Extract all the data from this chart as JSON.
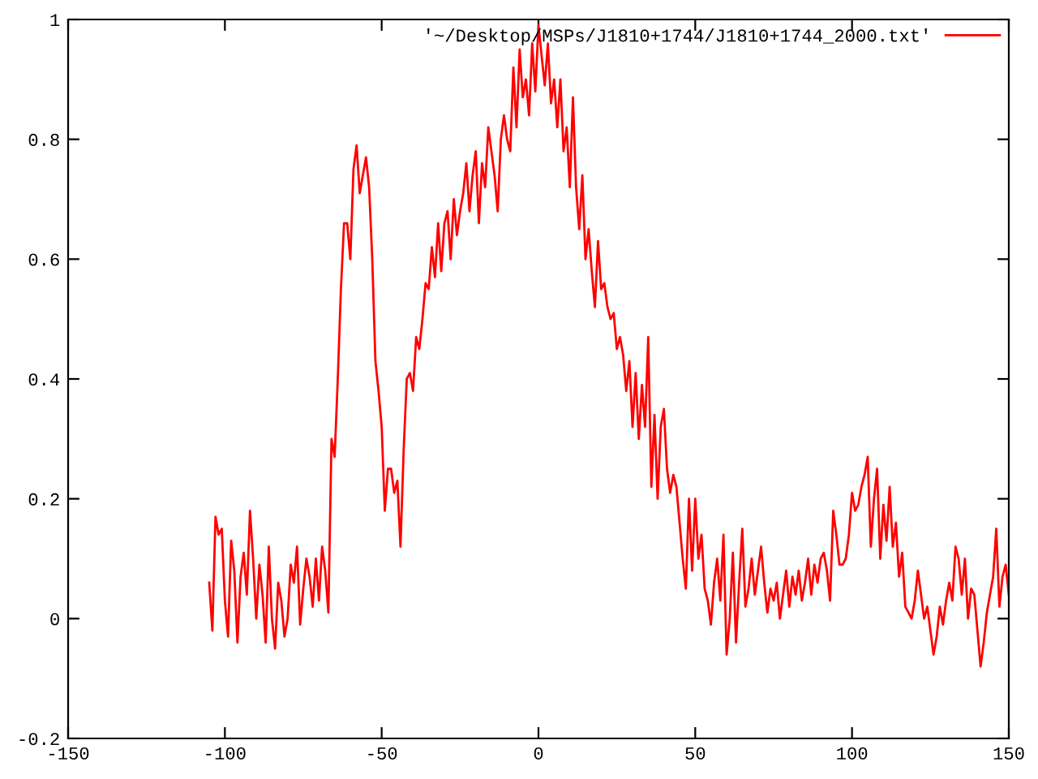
{
  "chart_data": {
    "type": "line",
    "series": [
      {
        "name": "'~/Desktop/MSPs/J1810+1744/J1810+1744_2000.txt'",
        "color": "#ff0000",
        "x": [
          -105,
          -104,
          -103,
          -102,
          -101,
          -100,
          -99,
          -98,
          -97,
          -96,
          -95,
          -94,
          -93,
          -92,
          -91,
          -90,
          -89,
          -88,
          -87,
          -86,
          -85,
          -84,
          -83,
          -82,
          -81,
          -80,
          -79,
          -78,
          -77,
          -76,
          -75,
          -74,
          -73,
          -72,
          -71,
          -70,
          -69,
          -68,
          -67,
          -66,
          -65,
          -64,
          -63,
          -62,
          -61,
          -60,
          -59,
          -58,
          -57,
          -56,
          -55,
          -54,
          -53,
          -52,
          -51,
          -50,
          -49,
          -48,
          -47,
          -46,
          -45,
          -44,
          -43,
          -42,
          -41,
          -40,
          -39,
          -38,
          -37,
          -36,
          -35,
          -34,
          -33,
          -32,
          -31,
          -30,
          -29,
          -28,
          -27,
          -26,
          -25,
          -24,
          -23,
          -22,
          -21,
          -20,
          -19,
          -18,
          -17,
          -16,
          -15,
          -14,
          -13,
          -12,
          -11,
          -10,
          -9,
          -8,
          -7,
          -6,
          -5,
          -4,
          -3,
          -2,
          -1,
          0,
          1,
          2,
          3,
          4,
          5,
          6,
          7,
          8,
          9,
          10,
          11,
          12,
          13,
          14,
          15,
          16,
          17,
          18,
          19,
          20,
          21,
          22,
          23,
          24,
          25,
          26,
          27,
          28,
          29,
          30,
          31,
          32,
          33,
          34,
          35,
          36,
          37,
          38,
          39,
          40,
          41,
          42,
          43,
          44,
          45,
          46,
          47,
          48,
          49,
          50,
          51,
          52,
          53,
          54,
          55,
          56,
          57,
          58,
          59,
          60,
          61,
          62,
          63,
          64,
          65,
          66,
          67,
          68,
          69,
          70,
          71,
          72,
          73,
          74,
          75,
          76,
          77,
          78,
          79,
          80,
          81,
          82,
          83,
          84,
          85,
          86,
          87,
          88,
          89,
          90,
          91,
          92,
          93,
          94,
          95,
          96,
          97,
          98,
          99,
          100,
          101,
          102,
          103,
          104,
          105,
          106,
          107,
          108,
          109,
          110,
          111,
          112,
          113,
          114,
          115,
          116,
          117,
          118,
          119,
          120,
          121,
          122,
          123,
          124,
          125,
          126,
          127,
          128,
          129,
          130,
          131,
          132,
          133,
          134,
          135,
          136,
          137,
          138,
          139,
          140,
          141,
          142,
          143,
          144,
          145,
          146,
          147,
          148,
          149,
          150
        ],
        "values": [
          0.06,
          -0.02,
          0.17,
          0.14,
          0.15,
          0.03,
          -0.03,
          0.13,
          0.08,
          -0.04,
          0.07,
          0.11,
          0.04,
          0.18,
          0.1,
          0.0,
          0.09,
          0.04,
          -0.04,
          0.12,
          0.0,
          -0.05,
          0.06,
          0.03,
          -0.03,
          0.0,
          0.09,
          0.06,
          0.12,
          -0.01,
          0.05,
          0.1,
          0.07,
          0.02,
          0.1,
          0.03,
          0.12,
          0.08,
          0.01,
          0.3,
          0.27,
          0.4,
          0.55,
          0.66,
          0.66,
          0.6,
          0.75,
          0.79,
          0.71,
          0.74,
          0.77,
          0.72,
          0.6,
          0.43,
          0.38,
          0.32,
          0.18,
          0.25,
          0.25,
          0.21,
          0.23,
          0.12,
          0.28,
          0.4,
          0.41,
          0.38,
          0.47,
          0.45,
          0.5,
          0.56,
          0.55,
          0.62,
          0.57,
          0.66,
          0.58,
          0.66,
          0.68,
          0.6,
          0.7,
          0.64,
          0.68,
          0.71,
          0.76,
          0.68,
          0.74,
          0.78,
          0.66,
          0.76,
          0.72,
          0.82,
          0.78,
          0.74,
          0.68,
          0.8,
          0.84,
          0.8,
          0.78,
          0.92,
          0.82,
          0.95,
          0.87,
          0.9,
          0.84,
          0.96,
          0.88,
          0.99,
          0.94,
          0.89,
          0.96,
          0.86,
          0.9,
          0.82,
          0.9,
          0.78,
          0.82,
          0.72,
          0.87,
          0.72,
          0.65,
          0.74,
          0.6,
          0.65,
          0.58,
          0.52,
          0.63,
          0.55,
          0.56,
          0.52,
          0.5,
          0.51,
          0.45,
          0.47,
          0.44,
          0.38,
          0.43,
          0.32,
          0.41,
          0.3,
          0.39,
          0.32,
          0.47,
          0.22,
          0.34,
          0.2,
          0.32,
          0.35,
          0.25,
          0.21,
          0.24,
          0.22,
          0.16,
          0.1,
          0.05,
          0.2,
          0.08,
          0.2,
          0.1,
          0.14,
          0.05,
          0.03,
          -0.01,
          0.06,
          0.1,
          0.03,
          0.14,
          -0.06,
          0.0,
          0.11,
          -0.04,
          0.06,
          0.15,
          0.02,
          0.05,
          0.1,
          0.04,
          0.08,
          0.12,
          0.06,
          0.01,
          0.05,
          0.03,
          0.06,
          0.0,
          0.04,
          0.08,
          0.02,
          0.07,
          0.04,
          0.08,
          0.03,
          0.06,
          0.1,
          0.04,
          0.09,
          0.06,
          0.1,
          0.11,
          0.08,
          0.03,
          0.18,
          0.14,
          0.09,
          0.09,
          0.1,
          0.14,
          0.21,
          0.18,
          0.19,
          0.22,
          0.24,
          0.27,
          0.12,
          0.2,
          0.25,
          0.1,
          0.19,
          0.13,
          0.22,
          0.12,
          0.16,
          0.07,
          0.11,
          0.02,
          0.01,
          0.0,
          0.03,
          0.08,
          0.04,
          0.0,
          0.02,
          -0.02,
          -0.06,
          -0.03,
          0.02,
          -0.01,
          0.03,
          0.06,
          0.03,
          0.12,
          0.1,
          0.04,
          0.1,
          0.0,
          0.05,
          0.04,
          -0.02,
          -0.08,
          -0.04,
          0.01,
          0.04,
          0.07,
          0.15,
          0.02,
          0.07,
          0.09,
          0.04
        ]
      }
    ],
    "xlim": [
      -150,
      150
    ],
    "ylim": [
      -0.2,
      1
    ],
    "xticks": [
      -150,
      -100,
      -50,
      0,
      50,
      100,
      150
    ],
    "yticks": [
      -0.2,
      0,
      0.2,
      0.4,
      0.6,
      0.8,
      1
    ],
    "grid": false,
    "legend": "top right",
    "marker": "none",
    "line_style": "solid"
  }
}
